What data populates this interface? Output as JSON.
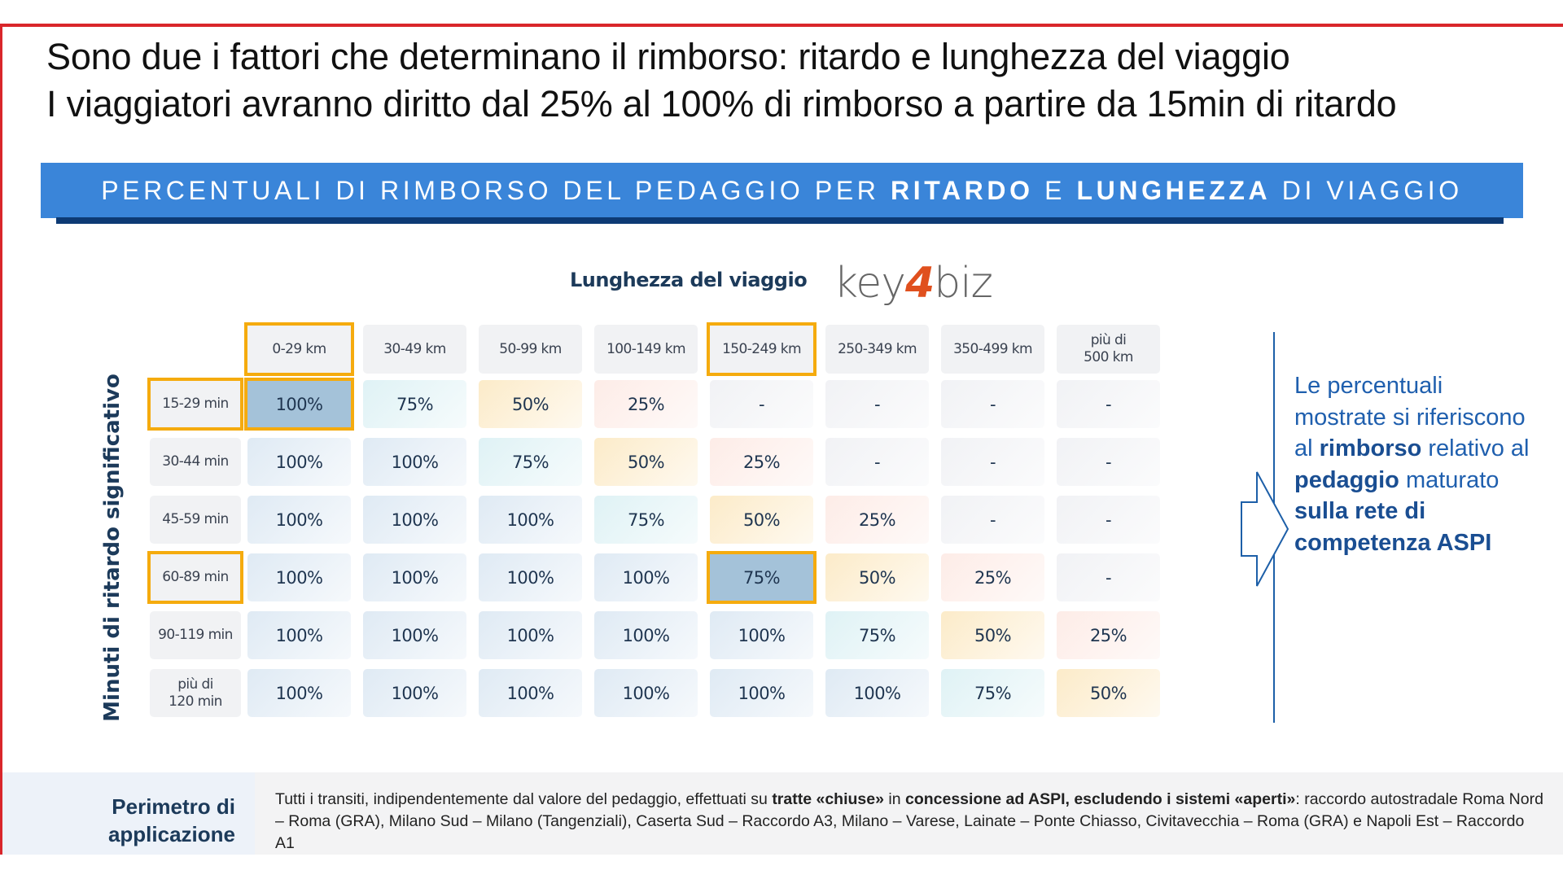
{
  "title": {
    "line1": "Sono due i fattori che determinano il rimborso: ritardo e lunghezza del viaggio",
    "line2": "I viaggiatori avranno diritto dal 25% al 100% di rimborso a partire da 15min di ritardo"
  },
  "banner": {
    "part1": "PERCENTUALI DI RIMBORSO DEL PEDAGGIO PER ",
    "bold1": "RITARDO",
    "part2": " E ",
    "bold2": "LUNGHEZZA",
    "part3": " DI VIAGGIO"
  },
  "table": {
    "x_title": "Lunghezza del viaggio",
    "y_title": "Minuti di ritardo significativo",
    "columns": [
      "0-29 km",
      "30-49 km",
      "50-99 km",
      "100-149 km",
      "150-249 km",
      "250-349 km",
      "350-499 km",
      "più di\n500 km"
    ],
    "rows": [
      {
        "label": "15-29 min",
        "values": [
          "100%",
          "75%",
          "50%",
          "25%",
          "-",
          "-",
          "-",
          "-"
        ]
      },
      {
        "label": "30-44 min",
        "values": [
          "100%",
          "100%",
          "75%",
          "50%",
          "25%",
          "-",
          "-",
          "-"
        ]
      },
      {
        "label": "45-59 min",
        "values": [
          "100%",
          "100%",
          "100%",
          "75%",
          "50%",
          "25%",
          "-",
          "-"
        ]
      },
      {
        "label": "60-89 min",
        "values": [
          "100%",
          "100%",
          "100%",
          "100%",
          "75%",
          "50%",
          "25%",
          "-"
        ]
      },
      {
        "label": "90-119 min",
        "values": [
          "100%",
          "100%",
          "100%",
          "100%",
          "100%",
          "75%",
          "50%",
          "25%"
        ]
      },
      {
        "label": "più di\n120 min",
        "values": [
          "100%",
          "100%",
          "100%",
          "100%",
          "100%",
          "100%",
          "75%",
          "50%"
        ]
      }
    ],
    "highlighted_columns": [
      0,
      4
    ],
    "highlighted_rows": [
      0,
      3
    ],
    "highlighted_cells": [
      [
        0,
        0
      ],
      [
        3,
        4
      ]
    ],
    "colors": {
      "100%": "#dfeaf4",
      "75%": "#dff2f5",
      "50%": "#fcebc9",
      "25%": "#fdece7",
      "-": "#f1f2f5",
      "highlight_border": "#f5ab0e",
      "highlight_fill": "#a4c2d9"
    }
  },
  "logo": {
    "text_a": "key",
    "text_b": "4",
    "text_c": "biz"
  },
  "note": {
    "t1": "Le percentuali mostrate si riferiscono al ",
    "b1": "rimborso",
    "t2": " relativo al ",
    "b2": "pedaggio",
    "t3": " maturato ",
    "b3": "sulla rete di competenza ASPI"
  },
  "footer": {
    "label": "Perimetro di applicazione",
    "t1": "Tutti i transiti, indipendentemente dal valore del pedaggio, effettuati su ",
    "b1": "tratte «chiuse»",
    "t2": " in ",
    "b2": "concessione ad ASPI, escludendo i sistemi «aperti»",
    "t3": ": raccordo autostradale Roma Nord – Roma (GRA), Milano Sud – Milano (Tangenziali), Caserta Sud – Raccordo A3, Milano – Varese, Lainate – Ponte Chiasso, Civitavecchia – Roma (GRA) e Napoli Est – Raccordo A1"
  }
}
